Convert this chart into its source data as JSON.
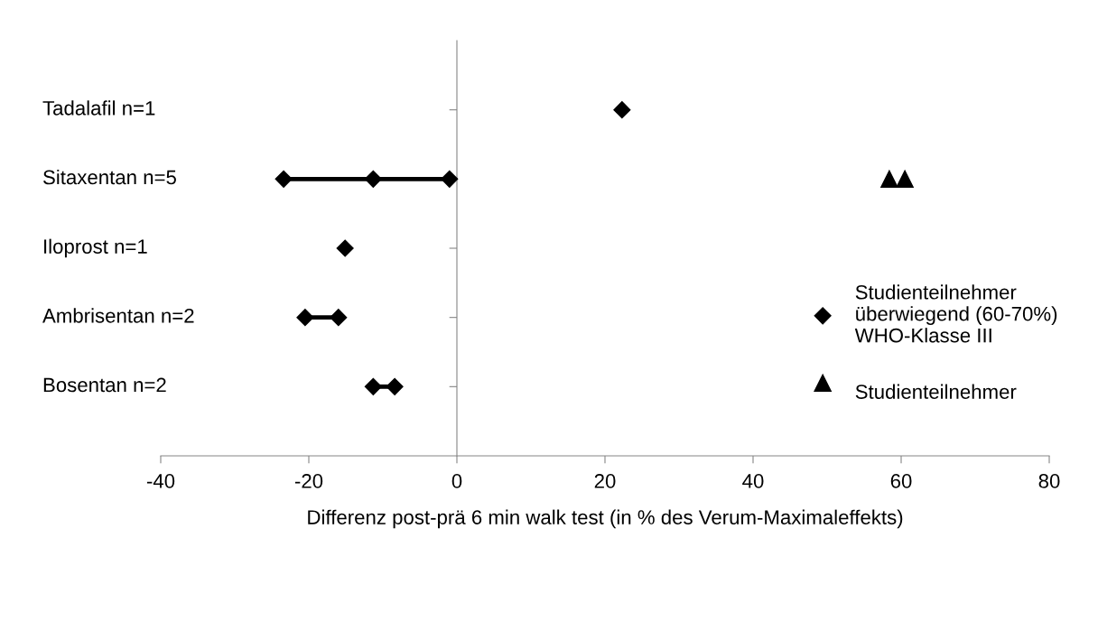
{
  "chart_data": {
    "type": "scatter",
    "orientation": "horizontal",
    "categories": [
      "Tadalafil n=1",
      "Sitaxentan n=5",
      "Iloprost n=1",
      "Ambrisentan n=2",
      "Bosentan n=2"
    ],
    "xlabel": "Differenz post-prä 6 min walk test (in % des Verum-Maximaleffekts)",
    "xlim": [
      -40,
      80
    ],
    "xticks": [
      -40,
      -20,
      0,
      20,
      40,
      60,
      80
    ],
    "legend": "right",
    "series": [
      {
        "type": "line",
        "color": "#000000",
        "line_style": "solid",
        "x": [
          "Sitaxentan n=5",
          "Sitaxentan n=5"
        ],
        "values": [
          -23.4,
          -1.0
        ]
      },
      {
        "type": "line",
        "color": "#000000",
        "line_style": "solid",
        "x": [
          "Ambrisentan n=2",
          "Ambrisentan n=2"
        ],
        "values": [
          -20.5,
          -16.0
        ]
      },
      {
        "type": "line",
        "color": "#000000",
        "line_style": "solid",
        "x": [
          "Bosentan n=2",
          "Bosentan n=2"
        ],
        "values": [
          -11.3,
          -8.4
        ]
      },
      {
        "name": "Studienteilnehmer\nüberwiegend (60-70%)\nWHO-Klasse III",
        "color": "#000000",
        "marker": "diamond",
        "x": [
          "Tadalafil n=1",
          "Sitaxentan n=5",
          "Sitaxentan n=5",
          "Sitaxentan n=5",
          "Iloprost n=1",
          "Ambrisentan n=2",
          "Ambrisentan n=2",
          "Bosentan n=2",
          "Bosentan n=2"
        ],
        "values": [
          22.3,
          -23.4,
          -11.3,
          -1.0,
          -15.1,
          -20.5,
          -16.0,
          -11.3,
          -8.4
        ]
      },
      {
        "name": "\nStudienteilnehmer",
        "color": "#000000",
        "marker": "triangle",
        "x": [
          "Sitaxentan n=5",
          "Sitaxentan n=5"
        ],
        "values": [
          58.4,
          60.5
        ]
      }
    ]
  }
}
